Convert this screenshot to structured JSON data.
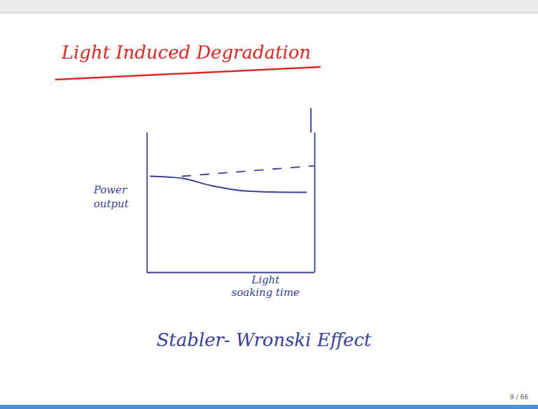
{
  "chart_data": {
    "type": "line",
    "title": "Light Induced Degradation",
    "x_label": "Light soaking time",
    "y_label": "Power output",
    "caption": "Stabler- Wronski Effect",
    "page": "9 / 66",
    "xlim": [
      0,
      10
    ],
    "ylim": [
      0,
      10
    ],
    "xticks": [],
    "yticks": [],
    "tick_labels": false,
    "grid": false,
    "series": [
      {
        "color": "#3b3f94",
        "line_style": "dashed",
        "x": [
          2.1,
          10
        ],
        "values": [
          6.9,
          7.65
        ]
      },
      {
        "color": "#3b3f94",
        "line_style": "solid",
        "x": [
          0.2,
          2.1,
          3.75,
          5.8,
          8.3,
          9.5
        ],
        "values": [
          6.9,
          6.75,
          6.25,
          5.85,
          5.75,
          5.75
        ]
      }
    ]
  }
}
